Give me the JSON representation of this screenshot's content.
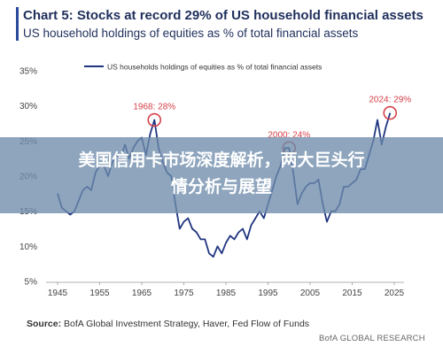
{
  "header": {
    "title": "Chart 5: Stocks at record 29% of US household financial assets",
    "subtitle": "US household holdings of equities as % of total financial assets"
  },
  "overlay": {
    "line1": "美国信用卡市场深度解析，两大巨头行",
    "line2": "情分析与展望"
  },
  "footer": {
    "source_label": "Source:",
    "source_text": " BofA Global Investment Strategy, Haver, Fed Flow of Funds",
    "brand": "BofA GLOBAL RESEARCH"
  },
  "colors": {
    "line": "#1f3580",
    "highlight": "#d6404a",
    "axis_text": "#444444",
    "gridline": "#cccccc"
  },
  "chart_data": {
    "type": "line",
    "title": "Chart 5: Stocks at record 29% of US household financial assets",
    "subtitle": "US household holdings of equities as % of total financial assets",
    "legend": "US households holdings of equities as % of total financial assets",
    "legend_position": "top",
    "xlabel": "",
    "ylabel": "",
    "xlim": [
      1945,
      2025
    ],
    "ylim": [
      5,
      35
    ],
    "x_ticks": [
      1945,
      1955,
      1965,
      1975,
      1985,
      1995,
      2005,
      2015,
      2025
    ],
    "y_ticks": [
      5,
      10,
      15,
      20,
      25,
      30,
      35
    ],
    "y_tick_labels": [
      "5%",
      "10%",
      "15%",
      "20%",
      "25%",
      "30%",
      "35%"
    ],
    "grid": false,
    "series": [
      {
        "name": "US households holdings of equities as % of total financial assets",
        "x": [
          1945,
          1946,
          1947,
          1948,
          1949,
          1950,
          1951,
          1952,
          1953,
          1954,
          1955,
          1956,
          1957,
          1958,
          1959,
          1960,
          1961,
          1962,
          1963,
          1964,
          1965,
          1966,
          1967,
          1968,
          1969,
          1970,
          1971,
          1972,
          1973,
          1974,
          1975,
          1976,
          1977,
          1978,
          1979,
          1980,
          1981,
          1982,
          1983,
          1984,
          1985,
          1986,
          1987,
          1988,
          1989,
          1990,
          1991,
          1992,
          1993,
          1994,
          1995,
          1996,
          1997,
          1998,
          1999,
          2000,
          2001,
          2002,
          2003,
          2004,
          2005,
          2006,
          2007,
          2008,
          2009,
          2010,
          2011,
          2012,
          2013,
          2014,
          2015,
          2016,
          2017,
          2018,
          2019,
          2020,
          2021,
          2022,
          2023,
          2024
        ],
        "y": [
          17.5,
          15.5,
          15,
          14.5,
          15,
          16.5,
          18,
          18.5,
          18,
          20.5,
          21.5,
          21.5,
          20,
          22,
          23,
          22.5,
          24.5,
          22.5,
          24,
          25,
          25.5,
          23,
          26,
          28,
          24,
          22,
          20.5,
          20,
          16,
          12.5,
          13.5,
          14,
          12.5,
          12,
          11,
          11,
          9,
          8.5,
          10,
          9,
          10.5,
          11.5,
          11,
          12,
          12.5,
          11,
          13,
          14,
          15,
          14,
          16,
          18,
          20,
          21.5,
          24,
          24,
          20.5,
          16,
          17.5,
          18.5,
          19,
          19,
          19.5,
          16,
          13.5,
          15,
          15,
          16,
          18.5,
          18.5,
          19,
          19.5,
          21,
          21,
          23,
          25,
          28,
          24.5,
          27,
          29
        ]
      }
    ],
    "annotations": [
      {
        "x": 1968,
        "y": 28,
        "label": "1968: 28%"
      },
      {
        "x": 2000,
        "y": 24,
        "label": "2000: 24%"
      },
      {
        "x": 2024,
        "y": 29,
        "label": "2024: 29%"
      }
    ]
  }
}
